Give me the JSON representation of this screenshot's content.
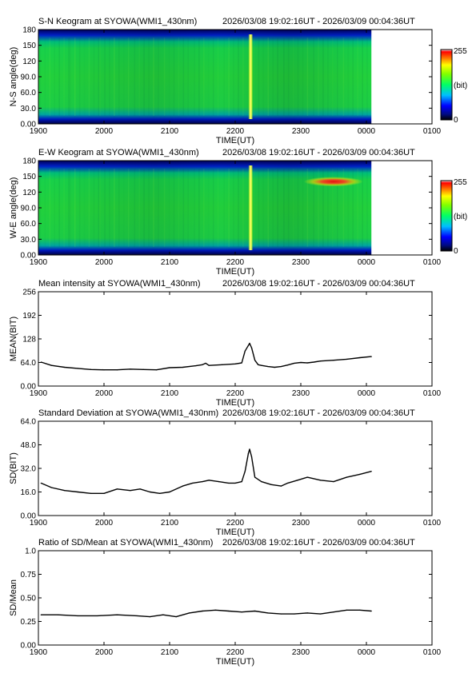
{
  "time_range": "2026/03/08 19:02:16UT - 2026/03/09 00:04:36UT",
  "colors": {
    "line": "#000000",
    "sky_dark": "#000a5e",
    "aurora_red": "#e42020"
  },
  "chart_data": [
    {
      "type": "heatmap",
      "title": "S-N Keogram at SYOWA(WMI1_430nm)",
      "ylabel": "N-S angle(deg)",
      "xlabel": "TIME(UT)",
      "xticks": [
        "1900",
        "2000",
        "2100",
        "2200",
        "2300",
        "0000",
        "0100"
      ],
      "yticks": [
        "0.00",
        "30.0",
        "60.0",
        "90.0",
        "120",
        "150",
        "180"
      ],
      "xlim": [
        19.0,
        25.0
      ],
      "ylim": [
        0,
        180
      ],
      "data_end": 24.076,
      "bright_band": [
        22.2,
        22.27
      ],
      "colorbar": {
        "label": "(bit)",
        "min": "0",
        "max": "255"
      }
    },
    {
      "type": "heatmap",
      "title": "E-W Keogram at SYOWA(WMI1_430nm)",
      "ylabel": "W-E angle(deg)",
      "xlabel": "TIME(UT)",
      "xticks": [
        "1900",
        "2000",
        "2100",
        "2200",
        "2300",
        "0000",
        "0100"
      ],
      "yticks": [
        "0.00",
        "30.0",
        "60.0",
        "90.0",
        "120",
        "150",
        "180"
      ],
      "xlim": [
        19.0,
        25.0
      ],
      "ylim": [
        0,
        180
      ],
      "data_end": 24.076,
      "bright_band": [
        22.2,
        22.27
      ],
      "hot_spot": {
        "x": [
          22.95,
          23.85
        ],
        "y": 140
      },
      "colorbar": {
        "label": "(bit)",
        "min": "0",
        "max": "255"
      }
    },
    {
      "type": "line",
      "title": "Mean intensity at SYOWA(WMI1_430nm)",
      "ylabel": "MEAN(BIT)",
      "xlabel": "TIME(UT)",
      "xticks": [
        "1900",
        "2000",
        "2100",
        "2200",
        "2300",
        "0000",
        "0100"
      ],
      "yticks": [
        "0.00",
        "64.0",
        "128",
        "192",
        "256"
      ],
      "xlim": [
        19.0,
        25.0
      ],
      "ylim": [
        0,
        256
      ],
      "series": [
        {
          "x": [
            19.04,
            19.2,
            19.4,
            19.6,
            19.8,
            20.0,
            20.2,
            20.4,
            20.6,
            20.8,
            21.0,
            21.2,
            21.4,
            21.5,
            21.55,
            21.6,
            21.8,
            22.0,
            22.1,
            22.15,
            22.2,
            22.22,
            22.25,
            22.3,
            22.35,
            22.4,
            22.5,
            22.6,
            22.7,
            22.8,
            22.9,
            23.0,
            23.1,
            23.2,
            23.3,
            23.5,
            23.7,
            23.9,
            24.076
          ],
          "y": [
            65,
            56,
            51,
            48,
            45,
            44,
            44,
            46,
            45,
            44,
            50,
            51,
            55,
            58,
            62,
            56,
            58,
            60,
            63,
            95,
            110,
            116,
            104,
            70,
            58,
            56,
            53,
            51,
            53,
            57,
            62,
            64,
            63,
            65,
            68,
            70,
            73,
            77,
            80
          ]
        }
      ]
    },
    {
      "type": "line",
      "title": "Standard Deviation at SYOWA(WMI1_430nm)",
      "ylabel": "SD(BIT)",
      "xlabel": "TIME(UT)",
      "xticks": [
        "1900",
        "2000",
        "2100",
        "2200",
        "2300",
        "0000",
        "0100"
      ],
      "yticks": [
        "0.00",
        "16.0",
        "32.0",
        "48.0",
        "64.0"
      ],
      "xlim": [
        19.0,
        25.0
      ],
      "ylim": [
        0,
        64
      ],
      "series": [
        {
          "x": [
            19.04,
            19.2,
            19.4,
            19.6,
            19.8,
            20.0,
            20.2,
            20.4,
            20.55,
            20.7,
            20.85,
            21.0,
            21.2,
            21.35,
            21.5,
            21.6,
            21.75,
            21.9,
            22.0,
            22.1,
            22.15,
            22.2,
            22.22,
            22.25,
            22.3,
            22.4,
            22.55,
            22.7,
            22.8,
            22.95,
            23.1,
            23.3,
            23.5,
            23.7,
            23.9,
            24.076
          ],
          "y": [
            22,
            19,
            17,
            16,
            15,
            15,
            18,
            17,
            18,
            16,
            15,
            16,
            20,
            22,
            23,
            24,
            23,
            22,
            22,
            23,
            30,
            42,
            45,
            40,
            26,
            23,
            21,
            20,
            22,
            24,
            26,
            24,
            23,
            26,
            28,
            30
          ]
        }
      ]
    },
    {
      "type": "line",
      "title": "Ratio of SD/Mean at SYOWA(WMI1_430nm)",
      "ylabel": "SD/Mean",
      "xlabel": "TIME(UT)",
      "xticks": [
        "1900",
        "2000",
        "2100",
        "2200",
        "2300",
        "0000",
        "0100"
      ],
      "yticks": [
        "0.00",
        "0.25",
        "0.50",
        "0.75",
        "1.0"
      ],
      "xlim": [
        19.0,
        25.0
      ],
      "ylim": [
        0,
        1.0
      ],
      "series": [
        {
          "x": [
            19.04,
            19.3,
            19.6,
            19.9,
            20.2,
            20.5,
            20.7,
            20.9,
            21.1,
            21.3,
            21.5,
            21.7,
            21.9,
            22.1,
            22.3,
            22.5,
            22.7,
            22.9,
            23.1,
            23.3,
            23.5,
            23.7,
            23.9,
            24.076
          ],
          "y": [
            0.32,
            0.32,
            0.31,
            0.31,
            0.32,
            0.31,
            0.3,
            0.32,
            0.3,
            0.34,
            0.36,
            0.37,
            0.36,
            0.35,
            0.36,
            0.34,
            0.33,
            0.33,
            0.34,
            0.33,
            0.35,
            0.37,
            0.37,
            0.36
          ]
        }
      ]
    }
  ]
}
